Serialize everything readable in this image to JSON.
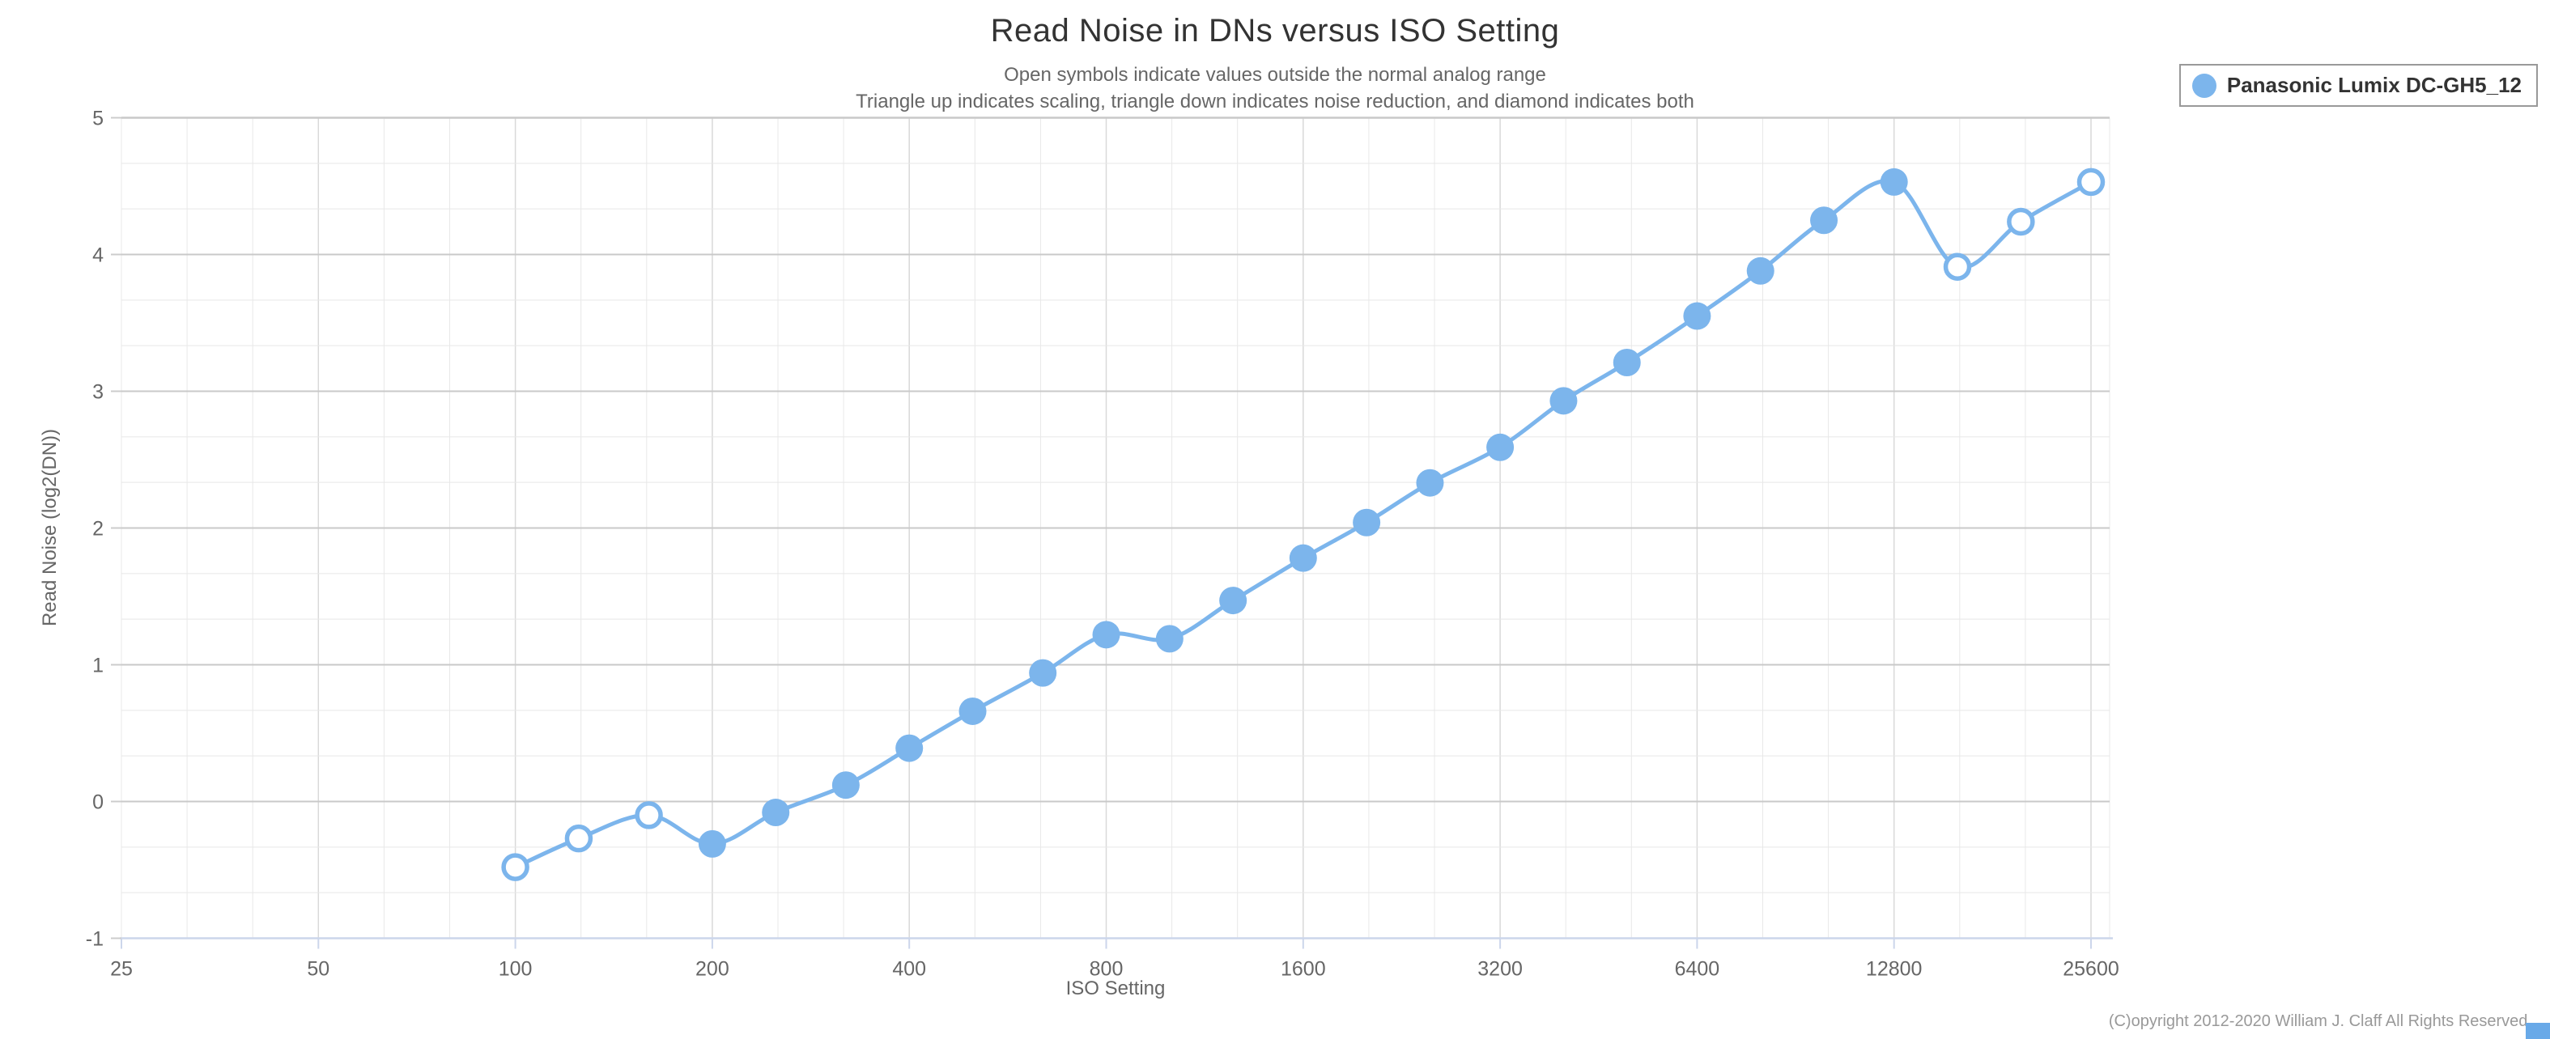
{
  "page": {
    "background_color": "#ffffff"
  },
  "title": {
    "text": "Read Noise in DNs versus ISO Setting",
    "color": "#333333"
  },
  "subtitle": {
    "line1": "Open symbols indicate values outside the normal analog range",
    "line2": "Triangle up indicates scaling, triangle down indicates noise reduction, and diamond indicates both",
    "color": "#666666"
  },
  "legend": {
    "position": "top-right",
    "border_color": "#999999",
    "items": [
      {
        "label": "Panasonic Lumix DC-GH5_12",
        "marker": "circle",
        "marker_color": "#7cb5ec"
      }
    ]
  },
  "footer": {
    "copyright": "(C)opyright 2012-2020 William J. Claff All Rights Reserved.",
    "color": "#999999"
  },
  "corner_artifact": {
    "color": "#68a9e8"
  },
  "chart_data": {
    "type": "line",
    "title": "Read Noise in DNs versus ISO Setting",
    "xlabel": "ISO Setting",
    "ylabel": "Read Noise (log2(DN))",
    "x_scale": "log2",
    "x_ticks": [
      25,
      50,
      100,
      200,
      400,
      800,
      1600,
      3200,
      6400,
      12800,
      25600
    ],
    "x_range": [
      25,
      27200
    ],
    "y_ticks": [
      -1,
      0,
      1,
      2,
      3,
      4,
      5
    ],
    "ylim": [
      -1,
      5
    ],
    "minor_gridlines": {
      "x_per_octave": 3,
      "y_step": 0.3333
    },
    "grid": true,
    "legend_position": "top-right",
    "tick_label_color": "#666666",
    "axis_line_color": "#ccd6eb",
    "major_grid_color": "#c9c9c9",
    "minor_grid_color": "#e8e8e8",
    "series": [
      {
        "name": "Panasonic Lumix DC-GH5_12",
        "color": "#7cb5ec",
        "marker": "circle",
        "x": [
          100,
          125,
          160,
          200,
          250,
          320,
          400,
          500,
          640,
          800,
          1000,
          1250,
          1600,
          2000,
          2500,
          3200,
          4000,
          5000,
          6400,
          8000,
          10000,
          12800,
          16000,
          20000,
          25600
        ],
        "y": [
          -0.48,
          -0.27,
          -0.1,
          -0.31,
          -0.08,
          0.12,
          0.39,
          0.66,
          0.94,
          1.22,
          1.19,
          1.47,
          1.78,
          2.04,
          2.33,
          2.59,
          2.93,
          3.21,
          3.55,
          3.88,
          4.25,
          4.53,
          3.91,
          4.24,
          4.53
        ],
        "open_symbol": [
          true,
          true,
          true,
          false,
          false,
          false,
          false,
          false,
          false,
          false,
          false,
          false,
          false,
          false,
          false,
          false,
          false,
          false,
          false,
          false,
          false,
          false,
          true,
          true,
          true
        ]
      }
    ]
  }
}
